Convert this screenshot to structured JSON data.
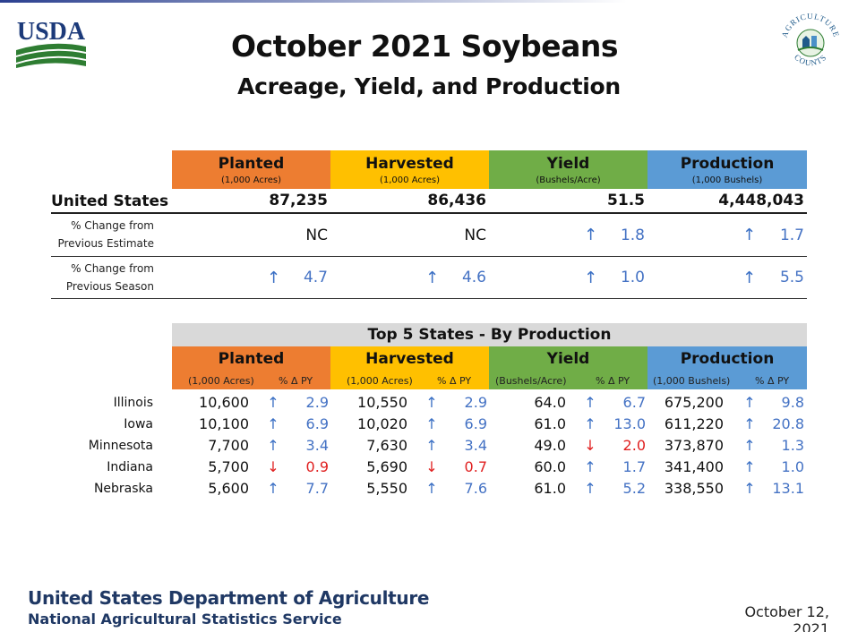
{
  "logos": {
    "left": "USDA",
    "right_top": "AGRICULTURE",
    "right_bottom": "COUNTS"
  },
  "title": "October 2021 Soybeans",
  "subtitle": "Acreage, Yield, and Production",
  "summary": {
    "headers": [
      {
        "label": "Planted",
        "unit": "(1,000 Acres)"
      },
      {
        "label": "Harvested",
        "unit": "(1,000 Acres)"
      },
      {
        "label": "Yield",
        "unit": "(Bushels/Acre)"
      },
      {
        "label": "Production",
        "unit": "(1,000 Bushels)"
      }
    ],
    "row_label": "United States",
    "values": [
      "87,235",
      "86,436",
      "51.5",
      "4,448,043"
    ],
    "change_estimate_label_1": "% Change from",
    "change_estimate_label_2": "Previous Estimate",
    "change_estimate": [
      {
        "dir": "",
        "value": "NC"
      },
      {
        "dir": "",
        "value": "NC"
      },
      {
        "dir": "up",
        "value": "1.8"
      },
      {
        "dir": "up",
        "value": "1.7"
      }
    ],
    "change_season_label_1": "% Change from",
    "change_season_label_2": "Previous Season",
    "change_season": [
      {
        "dir": "up",
        "value": "4.7"
      },
      {
        "dir": "up",
        "value": "4.6"
      },
      {
        "dir": "up",
        "value": "1.0"
      },
      {
        "dir": "up",
        "value": "5.5"
      }
    ]
  },
  "states": {
    "title": "Top 5 States - By Production",
    "headers": [
      "Planted",
      "Harvested",
      "Yield",
      "Production"
    ],
    "subheaders": [
      "(1,000 Acres)",
      "% Δ PY",
      "(1,000 Acres)",
      "% Δ PY",
      "(Bushels/Acre)",
      "% Δ PY",
      "(1,000 Bushels)",
      "% Δ PY"
    ],
    "rows": [
      {
        "state": "Illinois",
        "cells": [
          [
            "10,600",
            "up",
            "2.9"
          ],
          [
            "10,550",
            "up",
            "2.9"
          ],
          [
            "64.0",
            "up",
            "6.7"
          ],
          [
            "675,200",
            "up",
            "9.8"
          ]
        ]
      },
      {
        "state": "Iowa",
        "cells": [
          [
            "10,100",
            "up",
            "6.9"
          ],
          [
            "10,020",
            "up",
            "6.9"
          ],
          [
            "61.0",
            "up",
            "13.0"
          ],
          [
            "611,220",
            "up",
            "20.8"
          ]
        ]
      },
      {
        "state": "Minnesota",
        "cells": [
          [
            "7,700",
            "up",
            "3.4"
          ],
          [
            "7,630",
            "up",
            "3.4"
          ],
          [
            "49.0",
            "down",
            "2.0"
          ],
          [
            "373,870",
            "up",
            "1.3"
          ]
        ]
      },
      {
        "state": "Indiana",
        "cells": [
          [
            "5,700",
            "down",
            "0.9"
          ],
          [
            "5,690",
            "down",
            "0.7"
          ],
          [
            "60.0",
            "up",
            "1.7"
          ],
          [
            "341,400",
            "up",
            "1.0"
          ]
        ]
      },
      {
        "state": "Nebraska",
        "cells": [
          [
            "5,600",
            "up",
            "7.7"
          ],
          [
            "5,550",
            "up",
            "7.6"
          ],
          [
            "61.0",
            "up",
            "5.2"
          ],
          [
            "338,550",
            "up",
            "13.1"
          ]
        ]
      }
    ]
  },
  "footer": {
    "line1": "United States Department of Agriculture",
    "line2": "National Agricultural Statistics Service",
    "date": "October 12, 2021"
  },
  "colors": {
    "planted": "#ed7d31",
    "harvested": "#ffc000",
    "yield": "#70ad47",
    "production": "#5b9bd5",
    "up": "#4472c4",
    "down": "#e02020"
  },
  "icons": {
    "up": "arrow-up-icon",
    "down": "arrow-down-icon"
  }
}
